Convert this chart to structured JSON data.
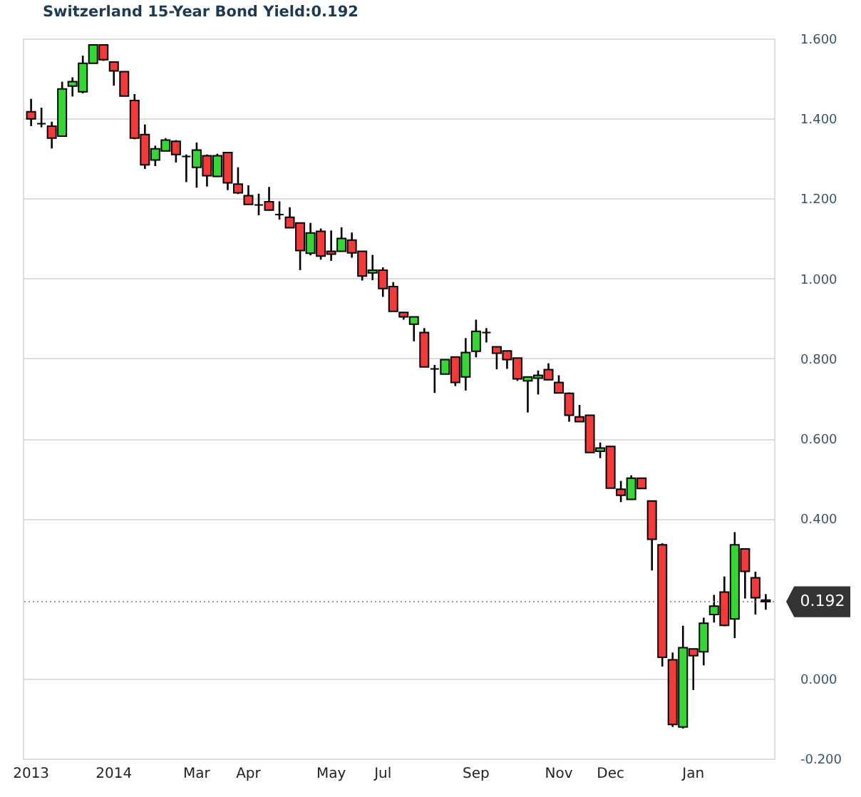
{
  "chart_data": {
    "type": "candlestick",
    "title": "Switzerland 15-Year Bond Yield:0.192",
    "categories": [
      "2013",
      null,
      null,
      null,
      null,
      null,
      null,
      null,
      "2014",
      null,
      null,
      null,
      null,
      null,
      null,
      null,
      "Mar",
      null,
      null,
      null,
      null,
      "Apr",
      null,
      null,
      null,
      null,
      null,
      null,
      null,
      "May",
      null,
      null,
      null,
      null,
      "Jul",
      null,
      null,
      null,
      null,
      null,
      null,
      null,
      null,
      "Sep",
      null,
      null,
      null,
      null,
      null,
      null,
      null,
      "Nov",
      null,
      null,
      null,
      null,
      "Dec",
      null,
      null,
      null,
      null,
      null,
      null,
      null,
      "Jan",
      null,
      null,
      null,
      null,
      null,
      null,
      null
    ],
    "ohlc": [
      [
        1.417,
        1.449,
        1.381,
        1.399
      ],
      [
        1.387,
        1.427,
        1.378,
        1.387
      ],
      [
        1.381,
        1.392,
        1.325,
        1.351
      ],
      [
        1.356,
        1.492,
        1.354,
        1.474
      ],
      [
        1.481,
        1.503,
        1.455,
        1.492
      ],
      [
        1.467,
        1.557,
        1.463,
        1.538
      ],
      [
        1.538,
        1.584,
        1.538,
        1.584
      ],
      [
        1.584,
        1.584,
        1.544,
        1.547
      ],
      [
        1.541,
        1.541,
        1.482,
        1.519
      ],
      [
        1.517,
        1.517,
        1.456,
        1.456
      ],
      [
        1.445,
        1.461,
        1.348,
        1.351
      ],
      [
        1.36,
        1.385,
        1.274,
        1.284
      ],
      [
        1.296,
        1.332,
        1.281,
        1.324
      ],
      [
        1.319,
        1.351,
        1.318,
        1.346
      ],
      [
        1.343,
        1.346,
        1.29,
        1.31
      ],
      [
        1.305,
        1.31,
        1.241,
        1.305
      ],
      [
        1.278,
        1.34,
        1.227,
        1.321
      ],
      [
        1.307,
        1.31,
        1.23,
        1.257
      ],
      [
        1.255,
        1.312,
        1.254,
        1.307
      ],
      [
        1.315,
        1.315,
        1.221,
        1.239
      ],
      [
        1.236,
        1.278,
        1.211,
        1.214
      ],
      [
        1.207,
        1.233,
        1.185,
        1.185
      ],
      [
        1.184,
        1.212,
        1.158,
        1.184
      ],
      [
        1.192,
        1.229,
        1.17,
        1.171
      ],
      [
        1.16,
        1.193,
        1.147,
        1.16
      ],
      [
        1.153,
        1.178,
        1.127,
        1.127
      ],
      [
        1.139,
        1.139,
        1.021,
        1.07
      ],
      [
        1.063,
        1.139,
        1.058,
        1.114
      ],
      [
        1.118,
        1.125,
        1.047,
        1.056
      ],
      [
        1.068,
        1.12,
        1.044,
        1.061
      ],
      [
        1.068,
        1.128,
        1.068,
        1.1
      ],
      [
        1.096,
        1.115,
        1.052,
        1.064
      ],
      [
        1.068,
        1.068,
        0.995,
        1.006
      ],
      [
        1.014,
        1.059,
        0.996,
        1.021
      ],
      [
        1.021,
        1.028,
        0.954,
        0.975
      ],
      [
        0.98,
        0.991,
        0.918,
        0.918
      ],
      [
        0.915,
        0.915,
        0.897,
        0.904
      ],
      [
        0.886,
        0.904,
        0.843,
        0.904
      ],
      [
        0.865,
        0.876,
        0.779,
        0.779
      ],
      [
        0.774,
        0.784,
        0.714,
        0.774
      ],
      [
        0.761,
        0.797,
        0.761,
        0.797
      ],
      [
        0.804,
        0.804,
        0.731,
        0.74
      ],
      [
        0.754,
        0.851,
        0.72,
        0.815
      ],
      [
        0.818,
        0.897,
        0.803,
        0.868
      ],
      [
        0.865,
        0.876,
        0.84,
        0.865
      ],
      [
        0.829,
        0.829,
        0.773,
        0.813
      ],
      [
        0.819,
        0.819,
        0.774,
        0.797
      ],
      [
        0.801,
        0.801,
        0.744,
        0.749
      ],
      [
        0.744,
        0.754,
        0.665,
        0.754
      ],
      [
        0.751,
        0.77,
        0.71,
        0.758
      ],
      [
        0.772,
        0.788,
        0.747,
        0.747
      ],
      [
        0.74,
        0.758,
        0.713,
        0.714
      ],
      [
        0.713,
        0.715,
        0.642,
        0.658
      ],
      [
        0.654,
        0.684,
        0.642,
        0.642
      ],
      [
        0.658,
        0.658,
        0.565,
        0.565
      ],
      [
        0.568,
        0.59,
        0.551,
        0.576
      ],
      [
        0.58,
        0.58,
        0.476,
        0.476
      ],
      [
        0.473,
        0.494,
        0.441,
        0.458
      ],
      [
        0.448,
        0.508,
        0.448,
        0.501
      ],
      [
        0.501,
        0.501,
        0.475,
        0.475
      ],
      [
        0.444,
        0.444,
        0.27,
        0.348
      ],
      [
        0.334,
        0.338,
        0.03,
        0.053
      ],
      [
        0.047,
        0.065,
        -0.121,
        -0.115
      ],
      [
        -0.121,
        0.132,
        -0.125,
        0.077
      ],
      [
        0.074,
        0.074,
        -0.029,
        0.057
      ],
      [
        0.067,
        0.152,
        0.033,
        0.138
      ],
      [
        0.16,
        0.209,
        0.14,
        0.181
      ],
      [
        0.216,
        0.255,
        0.131,
        0.133
      ],
      [
        0.149,
        0.366,
        0.101,
        0.334
      ],
      [
        0.324,
        0.324,
        0.2,
        0.268
      ],
      [
        0.252,
        0.267,
        0.16,
        0.202
      ],
      [
        0.196,
        0.211,
        0.172,
        0.192
      ]
    ],
    "colors": [
      "#f23a3a",
      "#000000",
      "#f23a3a",
      "#36d636",
      "#36d636",
      "#36d636",
      "#36d636",
      "#f23a3a",
      "#f23a3a",
      "#f23a3a",
      "#f23a3a",
      "#f23a3a",
      "#36d636",
      "#36d636",
      "#f23a3a",
      "#000000",
      "#36d636",
      "#f23a3a",
      "#36d636",
      "#f23a3a",
      "#f23a3a",
      "#f23a3a",
      "#000000",
      "#f23a3a",
      "#000000",
      "#f23a3a",
      "#f23a3a",
      "#36d636",
      "#f23a3a",
      "#f23a3a",
      "#36d636",
      "#f23a3a",
      "#f23a3a",
      "#36d636",
      "#f23a3a",
      "#f23a3a",
      "#f23a3a",
      "#36d636",
      "#f23a3a",
      "#000000",
      "#36d636",
      "#f23a3a",
      "#36d636",
      "#36d636",
      "#000000",
      "#f23a3a",
      "#f23a3a",
      "#f23a3a",
      "#36d636",
      "#36d636",
      "#f23a3a",
      "#f23a3a",
      "#f23a3a",
      "#f23a3a",
      "#f23a3a",
      "#36d636",
      "#f23a3a",
      "#f23a3a",
      "#36d636",
      "#f23a3a",
      "#f23a3a",
      "#f23a3a",
      "#f23a3a",
      "#36d636",
      "#f23a3a",
      "#36d636",
      "#36d636",
      "#f23a3a",
      "#36d636",
      "#f23a3a",
      "#f23a3a",
      "#f23a3a"
    ],
    "ylim": [
      -0.2,
      1.6
    ],
    "yticks": [
      {
        "value": -0.2,
        "label": "-0.200"
      },
      {
        "value": 0,
        "label": "0.000"
      },
      {
        "value": 0.4,
        "label": "0.400"
      },
      {
        "value": 0.6,
        "label": "0.600"
      },
      {
        "value": 0.8,
        "label": "0.800"
      },
      {
        "value": 1.0,
        "label": "1.000"
      },
      {
        "value": 1.2,
        "label": "1.200"
      },
      {
        "value": 1.4,
        "label": "1.400"
      },
      {
        "value": 1.6,
        "label": "1.600"
      }
    ],
    "grid": "y",
    "ref_lines": [
      {
        "axis": "y",
        "value": 0.192,
        "label": "0.192",
        "color": "#999999",
        "line_style": "dotted"
      }
    ]
  }
}
